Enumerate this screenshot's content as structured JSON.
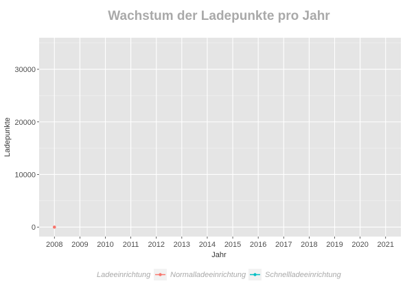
{
  "chart_data": {
    "type": "line",
    "title": "Wachstum der Ladepunkte pro Jahr",
    "xlabel": "Jahr",
    "ylabel": "Ladepunkte",
    "x": [
      2008,
      2009,
      2010,
      2011,
      2012,
      2013,
      2014,
      2015,
      2016,
      2017,
      2018,
      2019,
      2020,
      2021
    ],
    "xlim": [
      2007.4,
      2021.6
    ],
    "ylim": [
      -1800,
      36000
    ],
    "yticks": [
      0,
      10000,
      20000,
      30000
    ],
    "grid": true,
    "legend": {
      "title": "Ladeeinrichtung",
      "placement": "bottom"
    },
    "series": [
      {
        "name": "Normalladeeinrichtung",
        "color": "#f8766d",
        "points": [
          {
            "x": 2008,
            "y": 0
          }
        ]
      },
      {
        "name": "Schnellladeeinrichtung",
        "color": "#00bfc4",
        "points": []
      }
    ]
  }
}
